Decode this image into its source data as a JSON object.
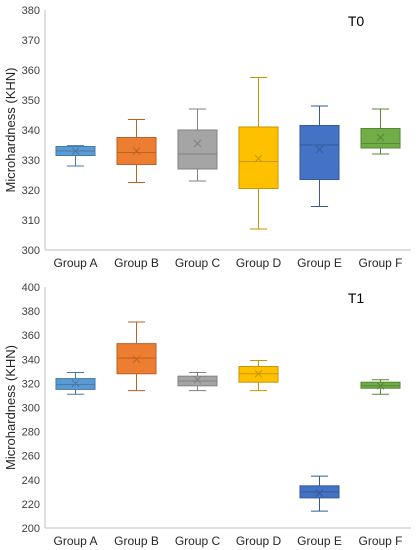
{
  "chart_data": [
    {
      "type": "box",
      "title": "T0",
      "ylabel": "Microhardness (KHN)",
      "ylim": [
        300,
        380
      ],
      "yticks": [
        300,
        310,
        320,
        330,
        340,
        350,
        360,
        370,
        380
      ],
      "grid": false,
      "categories": [
        "Group A",
        "Group B",
        "Group C",
        "Group D",
        "Group E",
        "Group F"
      ],
      "colors": [
        "#5b9bd5",
        "#ed7d31",
        "#a5a5a5",
        "#ffc000",
        "#4472c4",
        "#70ad47"
      ],
      "boxes": [
        {
          "whisker_low": 328,
          "q1": 331.5,
          "median": 333,
          "q3": 334.5,
          "whisker_high": 334.8,
          "mean": 333
        },
        {
          "whisker_low": 322.5,
          "q1": 328.5,
          "median": 332.5,
          "q3": 337.5,
          "whisker_high": 343.5,
          "mean": 333
        },
        {
          "whisker_low": 323,
          "q1": 327,
          "median": 332,
          "q3": 340,
          "whisker_high": 347,
          "mean": 335.5
        },
        {
          "whisker_low": 307,
          "q1": 320.5,
          "median": 329.5,
          "q3": 341,
          "whisker_high": 357.5,
          "mean": 330.5
        },
        {
          "whisker_low": 314.5,
          "q1": 323.5,
          "median": 335,
          "q3": 341.5,
          "whisker_high": 348,
          "mean": 333.5
        },
        {
          "whisker_low": 332,
          "q1": 334,
          "median": 335.5,
          "q3": 340.5,
          "whisker_high": 347,
          "mean": 337.5
        }
      ]
    },
    {
      "type": "box",
      "title": "T1",
      "ylabel": "Microhardness (KHN)",
      "ylim": [
        200,
        400
      ],
      "yticks": [
        200,
        220,
        240,
        260,
        280,
        300,
        320,
        340,
        360,
        380,
        400
      ],
      "grid": false,
      "categories": [
        "Group A",
        "Group B",
        "Group C",
        "Group D",
        "Group E",
        "Group F"
      ],
      "colors": [
        "#5b9bd5",
        "#ed7d31",
        "#a5a5a5",
        "#ffc000",
        "#4472c4",
        "#70ad47"
      ],
      "boxes": [
        {
          "whisker_low": 311,
          "q1": 315,
          "median": 319,
          "q3": 324,
          "whisker_high": 329,
          "mean": 320
        },
        {
          "whisker_low": 314,
          "q1": 328,
          "median": 341,
          "q3": 353,
          "whisker_high": 371,
          "mean": 340
        },
        {
          "whisker_low": 314,
          "q1": 318,
          "median": 322,
          "q3": 326,
          "whisker_high": 329,
          "mean": 323
        },
        {
          "whisker_low": 314,
          "q1": 321,
          "median": 328,
          "q3": 334,
          "whisker_high": 339,
          "mean": 328
        },
        {
          "whisker_low": 214,
          "q1": 225,
          "median": 230,
          "q3": 235,
          "whisker_high": 243,
          "mean": 229
        },
        {
          "whisker_low": 311,
          "q1": 316,
          "median": 318,
          "q3": 321,
          "whisker_high": 323,
          "mean": 318
        }
      ]
    }
  ]
}
